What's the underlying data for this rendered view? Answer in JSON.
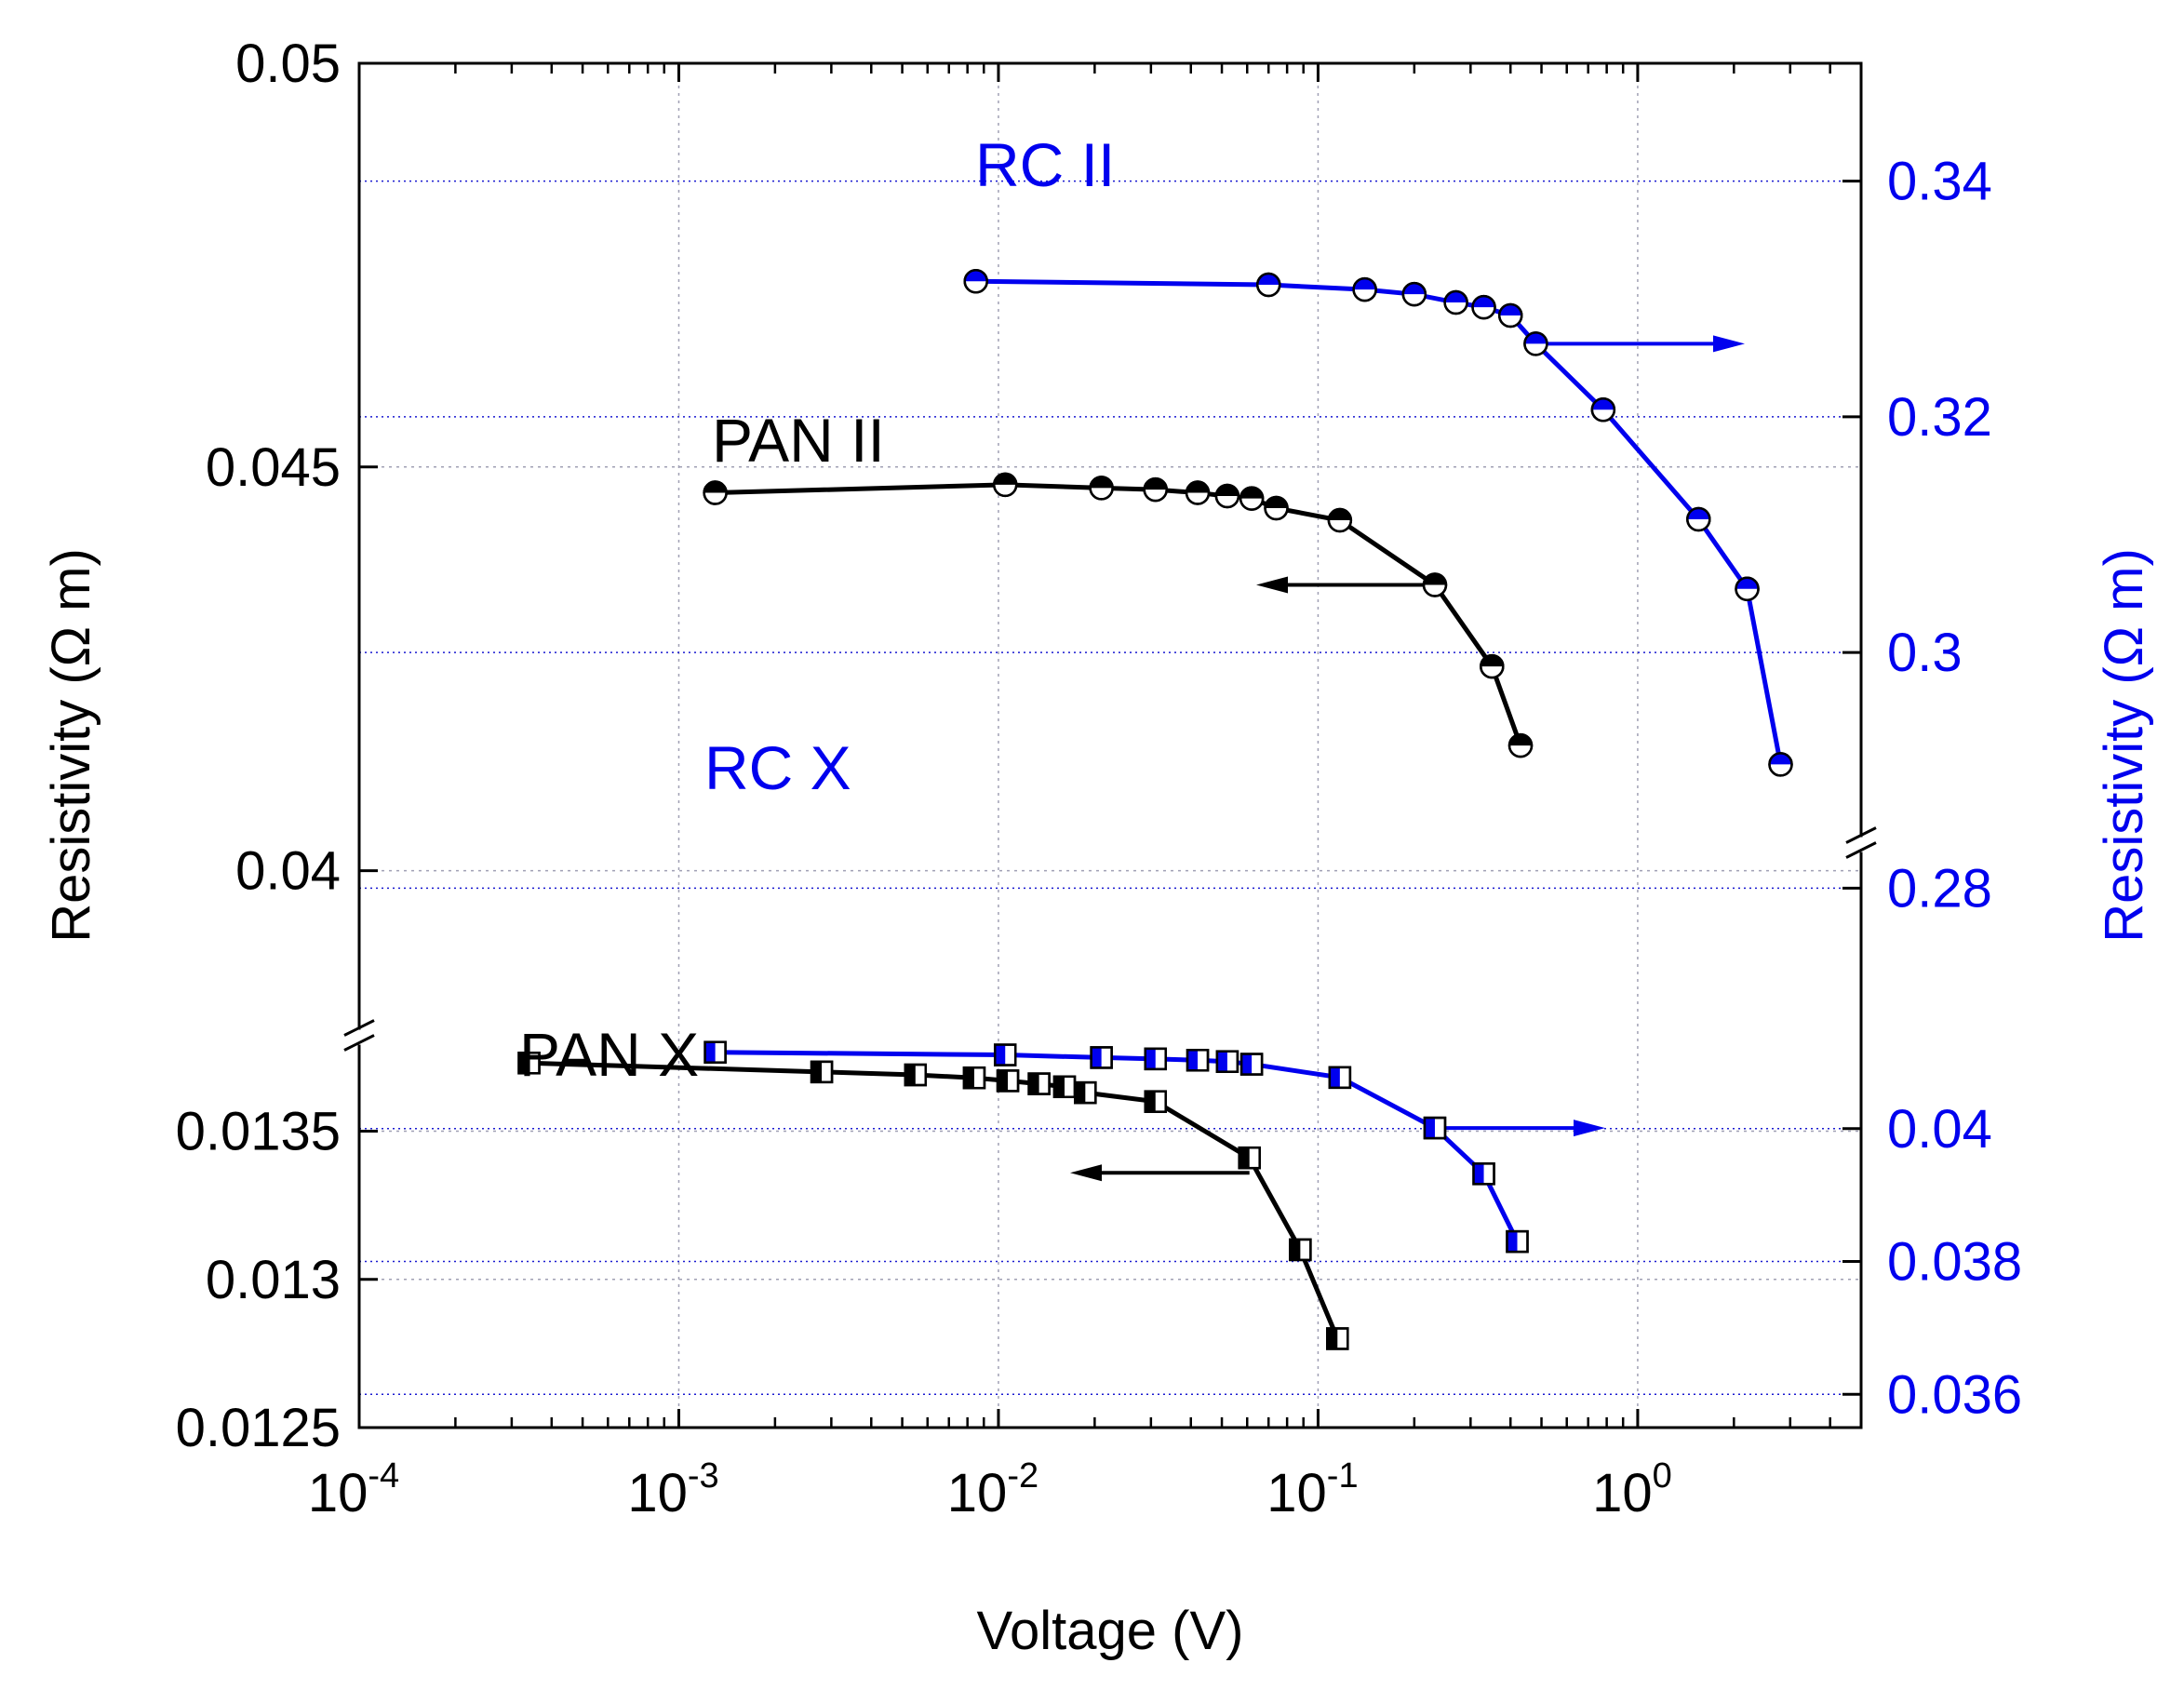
{
  "colors": {
    "black": "#000000",
    "blue": "#0000ee",
    "grid": "#a0a0b4",
    "gridBlue": "#1a1ad0"
  },
  "chart_data": {
    "type": "scatter",
    "title": "",
    "xlabel": "Voltage (V)",
    "xscale": "log",
    "xlim": [
      0.0001,
      5
    ],
    "x_ticks": [
      {
        "base": "10",
        "exp": "-4",
        "value": 0.0001
      },
      {
        "base": "10",
        "exp": "-3",
        "value": 0.001
      },
      {
        "base": "10",
        "exp": "-2",
        "value": 0.01
      },
      {
        "base": "10",
        "exp": "-1",
        "value": 0.1
      },
      {
        "base": "10",
        "exp": "0",
        "value": 1
      }
    ],
    "ylabel_left": "Resistivity (Ω m)",
    "ylabel_right": "Resistivity (Ω m)",
    "y_left": {
      "broken": true,
      "lower_range": [
        0.0125,
        0.0138
      ],
      "upper_range": [
        0.0392,
        0.05
      ],
      "ticks": [
        {
          "label": "0.05",
          "value": 0.05
        },
        {
          "label": "0.045",
          "value": 0.045
        },
        {
          "label": "0.04",
          "value": 0.04
        },
        {
          "label": "0.0135",
          "value": 0.0135
        },
        {
          "label": "0.013",
          "value": 0.013
        },
        {
          "label": "0.0125",
          "value": 0.0125
        }
      ]
    },
    "y_right": {
      "broken": true,
      "lower_range": [
        0.0355,
        0.0413
      ],
      "upper_range": [
        0.276,
        0.35
      ],
      "ticks": [
        {
          "label": "0.34",
          "value": 0.34
        },
        {
          "label": "0.32",
          "value": 0.32
        },
        {
          "label": "0.3",
          "value": 0.3
        },
        {
          "label": "0.28",
          "value": 0.28
        },
        {
          "label": "0.04",
          "value": 0.04
        },
        {
          "label": "0.038",
          "value": 0.038
        },
        {
          "label": "0.036",
          "value": 0.036
        }
      ]
    },
    "series": [
      {
        "name": "RC II",
        "axis": "right",
        "color": "blue",
        "marker": "circle-half",
        "arrow": "right",
        "x": [
          0.0085,
          0.07,
          0.14,
          0.2,
          0.27,
          0.33,
          0.4,
          0.48,
          0.78,
          1.55,
          2.2,
          2.8
        ],
        "y": [
          0.3315,
          0.3312,
          0.3308,
          0.3304,
          0.3297,
          0.3293,
          0.3286,
          0.3262,
          0.3206,
          0.3113,
          0.3054,
          0.2905
        ]
      },
      {
        "name": "PAN II",
        "axis": "left",
        "color": "black",
        "marker": "circle-half",
        "arrow": "left",
        "x": [
          0.0013,
          0.0105,
          0.021,
          0.031,
          0.042,
          0.052,
          0.062,
          0.074,
          0.117,
          0.232,
          0.35,
          0.43
        ],
        "y": [
          0.04468,
          0.04478,
          0.04474,
          0.04472,
          0.04468,
          0.04464,
          0.04461,
          0.04449,
          0.04434,
          0.04354,
          0.04253,
          0.04155
        ]
      },
      {
        "name": "RC X",
        "axis": "right",
        "color": "blue",
        "marker": "square-half",
        "arrow": "right",
        "x": [
          0.0013,
          0.0105,
          0.021,
          0.031,
          0.042,
          0.052,
          0.062,
          0.117,
          0.232,
          0.33,
          0.42
        ],
        "y": [
          0.04115,
          0.04111,
          0.04107,
          0.04105,
          0.04103,
          0.04101,
          0.04097,
          0.04077,
          0.04001,
          0.03932,
          0.0383
        ]
      },
      {
        "name": "PAN X",
        "axis": "left",
        "color": "black",
        "marker": "square-half",
        "arrow": "left",
        "x": [
          0.00034,
          0.0028,
          0.0055,
          0.0084,
          0.0107,
          0.0134,
          0.0161,
          0.0187,
          0.031,
          0.061,
          0.088,
          0.115
        ],
        "y": [
          0.01373,
          0.0137,
          0.01369,
          0.01368,
          0.01367,
          0.01366,
          0.01365,
          0.01363,
          0.0136,
          0.01341,
          0.0131,
          0.0128
        ]
      }
    ]
  }
}
